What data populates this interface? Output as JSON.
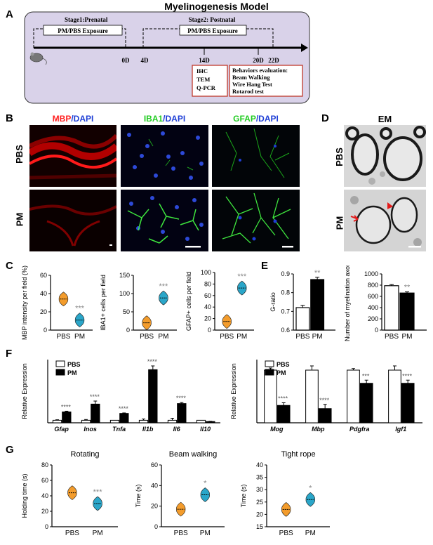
{
  "title": "Myelinogenesis Model",
  "panel_letters": [
    "A",
    "B",
    "C",
    "D",
    "E",
    "F",
    "G"
  ],
  "panelA": {
    "stage1": "Stage1:Prenatal",
    "stage2": "Stage2: Postnatal",
    "exposure1": "PM/PBS Exposure",
    "exposure2": "PM/PBS Exposure",
    "days": [
      "0D",
      "4D",
      "14D",
      "20D",
      "22D"
    ],
    "box1": [
      "IHC",
      "TEM",
      "Q-PCR"
    ],
    "box2": [
      "Behaviors evaluation:",
      "Beam Walking",
      "Wire Hang Test",
      "Rotarod test"
    ],
    "colors": {
      "bg": "#d9d2e9",
      "box_border": "#c0392b"
    }
  },
  "panelB": {
    "stains": [
      {
        "a": "MBP",
        "b": "/DAPI",
        "color_a": "#ff2020"
      },
      {
        "a": "IBA1",
        "b": "/DAPI",
        "color_a": "#22cc22"
      },
      {
        "a": "GFAP",
        "b": "/DAPI",
        "color_a": "#22cc22"
      }
    ],
    "dapi_color": "#1f3fd6",
    "rows": [
      "PBS",
      "PM"
    ]
  },
  "panelD": {
    "title": "EM",
    "rows": [
      "PBS",
      "PM"
    ]
  },
  "chart_data": [
    {
      "id": "C1",
      "type": "violin",
      "ylabel": "MBP intensity per field (%)",
      "categories": [
        "PBS",
        "PM"
      ],
      "values": [
        34,
        11
      ],
      "ylim": [
        0,
        60
      ],
      "yticks": [
        0,
        20,
        40,
        60
      ],
      "sig": [
        "",
        "***"
      ],
      "colors": [
        "#f39c2c",
        "#2aa6c9"
      ]
    },
    {
      "id": "C2",
      "type": "violin",
      "ylabel": "IBA1+ cells per field",
      "categories": [
        "PBS",
        "PM"
      ],
      "values": [
        20,
        88
      ],
      "ylim": [
        0,
        150
      ],
      "yticks": [
        0,
        50,
        100,
        150
      ],
      "sig": [
        "",
        "***"
      ],
      "colors": [
        "#f39c2c",
        "#2aa6c9"
      ]
    },
    {
      "id": "C3",
      "type": "violin",
      "ylabel": "GFAP+ cells per field",
      "categories": [
        "PBS",
        "PM"
      ],
      "values": [
        15,
        73
      ],
      "ylim": [
        0,
        100
      ],
      "yticks": [
        0,
        20,
        40,
        60,
        80,
        100
      ],
      "sig": [
        "",
        "***"
      ],
      "colors": [
        "#f39c2c",
        "#2aa6c9"
      ]
    },
    {
      "id": "E1",
      "type": "bar",
      "ylabel": "G-ratio",
      "categories": [
        "PBS",
        "PM"
      ],
      "values": [
        0.72,
        0.87
      ],
      "errors": [
        0.012,
        0.012
      ],
      "ylim": [
        0.6,
        0.9
      ],
      "yticks": [
        0.6,
        0.7,
        0.8,
        0.9
      ],
      "sig": [
        "",
        "**"
      ],
      "fills": [
        "#ffffff",
        "#000000"
      ]
    },
    {
      "id": "E2",
      "type": "bar",
      "ylabel": "Number of myelination axon",
      "categories": [
        "PBS",
        "PM"
      ],
      "values": [
        790,
        660
      ],
      "errors": [
        20,
        20
      ],
      "ylim": [
        0,
        1000
      ],
      "yticks": [
        0,
        200,
        400,
        600,
        800,
        1000
      ],
      "sig": [
        "",
        "**"
      ],
      "fills": [
        "#ffffff",
        "#000000"
      ]
    },
    {
      "id": "F1",
      "type": "grouped-bar",
      "ylabel": "Relative Expression",
      "categories": [
        "Gfap",
        "Inos",
        "Tnfa",
        "Il1b",
        "Il6",
        "Il10"
      ],
      "series": [
        {
          "name": "PBS",
          "values": [
            1,
            1,
            1,
            1,
            1,
            1
          ],
          "errors": [
            0.2,
            0.3,
            0,
            0.5,
            0.8,
            0
          ]
        },
        {
          "name": "PM",
          "values": [
            4.3,
            7.4,
            3.7,
            21,
            7.6,
            0.5
          ],
          "errors": [
            0.3,
            1.2,
            0.2,
            1.5,
            0.4,
            0.1
          ]
        }
      ],
      "ylim": [
        0,
        25
      ],
      "sig": [
        "****",
        "****",
        "****",
        "****",
        "****",
        ""
      ]
    },
    {
      "id": "F2",
      "type": "grouped-bar",
      "ylabel": "Relative Expression",
      "categories": [
        "Mog",
        "Mbp",
        "Pdgfra",
        "Igf1"
      ],
      "series": [
        {
          "name": "PBS",
          "values": [
            1,
            1,
            1,
            1
          ],
          "errors": [
            0.04,
            0.08,
            0.03,
            0.08
          ]
        },
        {
          "name": "PM",
          "values": [
            0.33,
            0.27,
            0.75,
            0.75
          ],
          "errors": [
            0.05,
            0.08,
            0.06,
            0.06
          ]
        }
      ],
      "ylim": [
        0,
        1.2
      ],
      "sig": [
        "****",
        "****",
        "***",
        "****"
      ]
    },
    {
      "id": "G1",
      "type": "violin",
      "title": "Rotating",
      "ylabel": "Holding time (s)",
      "categories": [
        "PBS",
        "PM"
      ],
      "values": [
        44,
        30
      ],
      "ylim": [
        0,
        80
      ],
      "yticks": [
        0,
        20,
        40,
        60,
        80
      ],
      "sig": [
        "",
        "***"
      ],
      "colors": [
        "#f39c2c",
        "#2aa6c9"
      ]
    },
    {
      "id": "G2",
      "type": "violin",
      "title": "Beam walking",
      "ylabel": "Time (s)",
      "categories": [
        "PBS",
        "PM"
      ],
      "values": [
        17,
        31
      ],
      "ylim": [
        0,
        60
      ],
      "yticks": [
        0,
        20,
        40,
        60
      ],
      "sig": [
        "",
        "*"
      ],
      "colors": [
        "#f39c2c",
        "#2aa6c9"
      ]
    },
    {
      "id": "G3",
      "type": "violin",
      "title": "Tight rope",
      "ylabel": "Time (s)",
      "categories": [
        "PBS",
        "PM"
      ],
      "values": [
        22,
        26
      ],
      "ylim": [
        15,
        40
      ],
      "yticks": [
        15,
        20,
        25,
        30,
        35,
        40
      ],
      "sig": [
        "",
        "*"
      ],
      "colors": [
        "#f39c2c",
        "#2aa6c9"
      ]
    }
  ]
}
